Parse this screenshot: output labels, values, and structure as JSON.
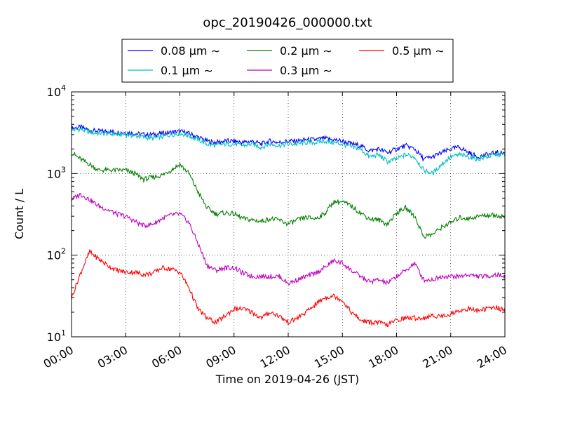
{
  "chart_data": {
    "type": "line",
    "title": "opc_20190426_000000.txt",
    "xlabel": "Time on 2019-04-26 (JST)",
    "ylabel": "Count / L",
    "y_scale": "log",
    "ylim": [
      10,
      10000
    ],
    "xlim": [
      "00:00",
      "24:00"
    ],
    "grid": true,
    "legend_position": "top",
    "x_tick_labels": [
      "00:00",
      "03:00",
      "06:00",
      "09:00",
      "12:00",
      "15:00",
      "18:00",
      "21:00",
      "24:00"
    ],
    "y_ticks": [
      {
        "base": "10",
        "exp": "1"
      },
      {
        "base": "10",
        "exp": "2"
      },
      {
        "base": "10",
        "exp": "3"
      },
      {
        "base": "10",
        "exp": "4"
      }
    ],
    "x": [
      "00:00",
      "00:30",
      "01:00",
      "01:30",
      "02:00",
      "02:30",
      "03:00",
      "03:30",
      "04:00",
      "04:30",
      "05:00",
      "05:30",
      "06:00",
      "06:30",
      "07:00",
      "07:30",
      "08:00",
      "08:30",
      "09:00",
      "09:30",
      "10:00",
      "10:30",
      "11:00",
      "11:30",
      "12:00",
      "12:30",
      "13:00",
      "13:30",
      "14:00",
      "14:30",
      "15:00",
      "15:30",
      "16:00",
      "16:30",
      "17:00",
      "17:30",
      "18:00",
      "18:30",
      "19:00",
      "19:30",
      "20:00",
      "20:30",
      "21:00",
      "21:30",
      "22:00",
      "22:30",
      "23:00",
      "23:30",
      "24:00"
    ],
    "series": [
      {
        "name": "0.08 μm ∼",
        "color": "#0000ff",
        "values": [
          3600,
          3700,
          3400,
          3300,
          3300,
          3200,
          3200,
          3100,
          3000,
          3000,
          3100,
          3200,
          3300,
          3100,
          2800,
          2500,
          2400,
          2500,
          2500,
          2400,
          2500,
          2300,
          2500,
          2400,
          2500,
          2500,
          2600,
          2600,
          2700,
          2600,
          2500,
          2300,
          2200,
          1900,
          2000,
          1800,
          2000,
          2200,
          2000,
          1500,
          1600,
          1800,
          2000,
          2100,
          1800,
          1600,
          1700,
          1800,
          1800
        ]
      },
      {
        "name": "0.1 μm ∼",
        "color": "#00bfbf",
        "values": [
          3400,
          3500,
          3200,
          3100,
          3100,
          3000,
          3000,
          2900,
          2800,
          2700,
          2800,
          3000,
          3100,
          2900,
          2600,
          2300,
          2200,
          2300,
          2300,
          2200,
          2300,
          2100,
          2300,
          2200,
          2300,
          2300,
          2400,
          2400,
          2500,
          2400,
          2300,
          2100,
          2000,
          1600,
          1700,
          1400,
          1500,
          1700,
          1600,
          1100,
          1000,
          1300,
          1600,
          1700,
          1600,
          1500,
          1600,
          1700,
          1700
        ]
      },
      {
        "name": "0.2 μm ∼",
        "color": "#008000",
        "values": [
          1800,
          1500,
          1300,
          1100,
          1100,
          1100,
          1100,
          1000,
          850,
          900,
          950,
          1100,
          1300,
          1000,
          600,
          380,
          320,
          330,
          320,
          280,
          270,
          260,
          280,
          270,
          240,
          270,
          290,
          280,
          320,
          450,
          450,
          400,
          330,
          280,
          270,
          240,
          330,
          380,
          300,
          170,
          180,
          220,
          250,
          290,
          280,
          300,
          310,
          310,
          290
        ]
      },
      {
        "name": "0.3 μm ∼",
        "color": "#bf00bf",
        "values": [
          480,
          560,
          480,
          400,
          360,
          320,
          300,
          260,
          230,
          240,
          280,
          310,
          320,
          250,
          140,
          75,
          65,
          70,
          70,
          60,
          55,
          55,
          55,
          55,
          45,
          50,
          55,
          60,
          70,
          85,
          80,
          65,
          55,
          47,
          50,
          45,
          55,
          65,
          80,
          50,
          50,
          55,
          55,
          55,
          58,
          55,
          55,
          58,
          55
        ]
      },
      {
        "name": "0.5 μm ∼",
        "color": "#ff0000",
        "values": [
          30,
          60,
          110,
          90,
          75,
          65,
          62,
          62,
          58,
          60,
          70,
          68,
          62,
          40,
          22,
          17,
          15,
          18,
          22,
          22,
          20,
          17,
          20,
          18,
          15,
          17,
          20,
          25,
          30,
          32,
          28,
          20,
          16,
          15,
          15,
          14,
          16,
          17,
          17,
          17,
          18,
          18,
          19,
          21,
          22,
          21,
          22,
          23,
          21
        ]
      }
    ]
  }
}
